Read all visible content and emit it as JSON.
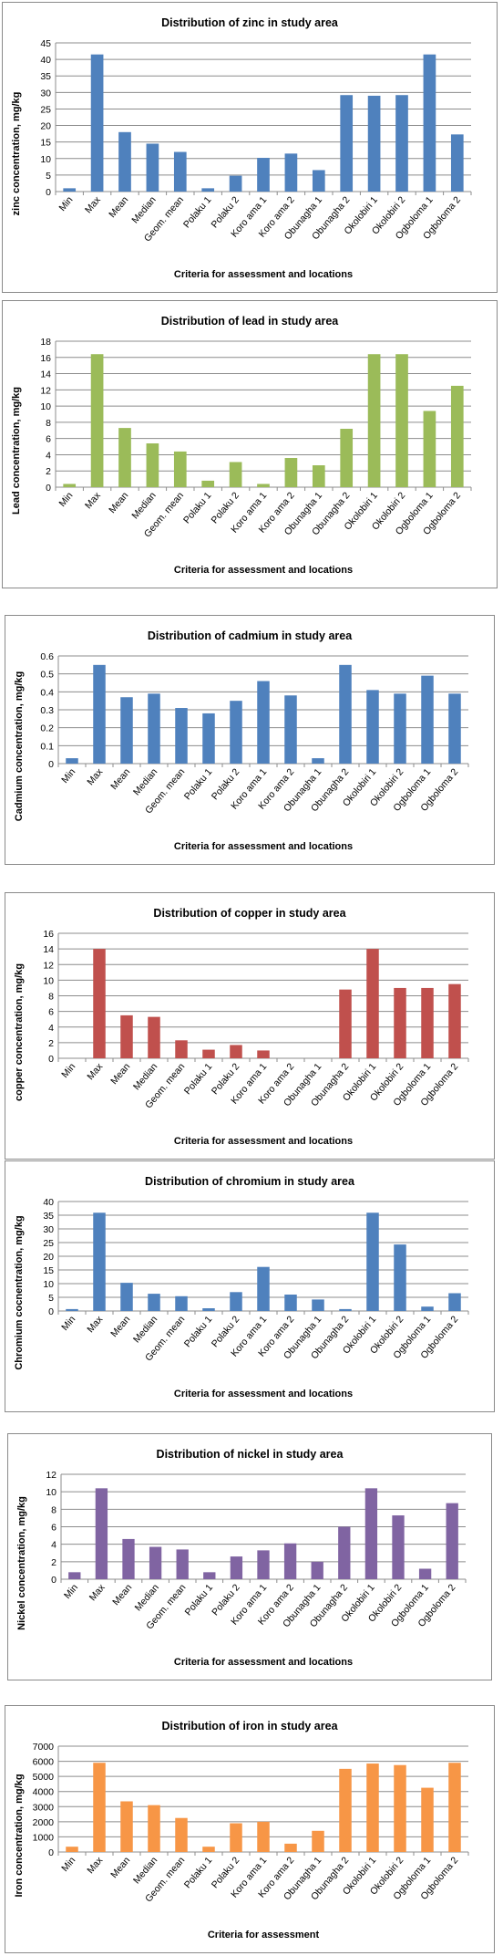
{
  "chart_data": [
    {
      "type": "bar",
      "title": "Distribution of zinc  in study area",
      "xlabel": "Criteria for assessment  and locations",
      "ylabel": "zinc concentration,  mg/kg",
      "categories": [
        "Min",
        "Max",
        "Mean",
        "Median",
        "Geom. mean",
        "Polaku 1",
        "Polaku 2",
        "Koro ama 1",
        "Koro ama 2",
        "Obunagha 1",
        "Obunagha 2",
        "Okolobiri 1",
        "Okolobiri 2",
        "Ogboloma 1",
        "Ogboloma 2"
      ],
      "values": [
        1,
        41.5,
        18,
        14.5,
        12,
        1,
        4.8,
        10.2,
        11.5,
        6.5,
        29.2,
        29,
        29.2,
        41.5,
        17.3
      ],
      "ylim": [
        0,
        45
      ],
      "yticks": [
        0,
        5,
        10,
        15,
        20,
        25,
        30,
        35,
        40,
        45
      ],
      "grid": true,
      "color": "#4f81bd"
    },
    {
      "type": "bar",
      "title": "Distribution of lead  in study area",
      "xlabel": "Criteria for assessment  and locations",
      "ylabel": "Lead concentration,  mg/kg",
      "categories": [
        "Min",
        "Max",
        "Mean",
        "Median",
        "Geom. mean",
        "Polaku 1",
        "Polaku 2",
        "Koro ama 1",
        "Koro ama 2",
        "Obunagha 1",
        "Obunagha 2",
        "Okolobiri 1",
        "Okolobiri 2",
        "Ogboloma 1",
        "Ogboloma 2"
      ],
      "values": [
        0.4,
        16.4,
        7.3,
        5.4,
        4.4,
        0.8,
        3.1,
        0.4,
        3.6,
        2.7,
        7.2,
        16.4,
        16.4,
        9.4,
        12.5
      ],
      "ylim": [
        0,
        18
      ],
      "yticks": [
        0,
        2,
        4,
        6,
        8,
        10,
        12,
        14,
        16,
        18
      ],
      "grid": true,
      "color": "#9bbb59"
    },
    {
      "type": "bar",
      "title": "Distribution of cadmium  in study area",
      "xlabel": "Criteria for assessment  and locations",
      "ylabel": "Cadmium concentration,  mg/kg",
      "categories": [
        "Min",
        "Max",
        "Mean",
        "Median",
        "Geom. mean",
        "Polaku 1",
        "Polaku 2",
        "Koro ama 1",
        "Koro ama 2",
        "Obunagha 1",
        "Obunagha 2",
        "Okolobiri 1",
        "Okolobiri 2",
        "Ogboloma 1",
        "Ogboloma 2"
      ],
      "values": [
        0.03,
        0.55,
        0.37,
        0.39,
        0.31,
        0.28,
        0.35,
        0.46,
        0.38,
        0.03,
        0.55,
        0.41,
        0.39,
        0.49,
        0.39
      ],
      "ylim": [
        0,
        0.6
      ],
      "yticks": [
        0,
        0.1,
        0.2,
        0.3,
        0.4,
        0.5,
        0.6
      ],
      "grid": true,
      "color": "#4f81bd"
    },
    {
      "type": "bar",
      "title": "Distribution of copper  in study area",
      "xlabel": "Criteria for assessment  and locations",
      "ylabel": "copper concentration, mg/kg",
      "categories": [
        "Min",
        "Max",
        "Mean",
        "Median",
        "Geom. mean",
        "Polaku 1",
        "Polaku 2",
        "Koro ama 1",
        "Koro ama 2",
        "Obunagha 1",
        "Obunagha 2",
        "Okolobiri 1",
        "Okolobiri 2",
        "Ogboloma 1",
        "Ogboloma 2"
      ],
      "values": [
        0,
        14,
        5.5,
        5.3,
        2.3,
        1.1,
        1.7,
        1,
        0,
        0,
        8.8,
        14,
        9,
        9,
        9.5
      ],
      "ylim": [
        0,
        16
      ],
      "yticks": [
        0,
        2,
        4,
        6,
        8,
        10,
        12,
        14,
        16
      ],
      "grid": true,
      "color": "#c0504d"
    },
    {
      "type": "bar",
      "title": "Distribution of chromium  in study area",
      "xlabel": "Criteria for assessment  and locations",
      "ylabel": "Chromium cocnentration,  mg/kg",
      "categories": [
        "Min",
        "Max",
        "Mean",
        "Median",
        "Geom. mean",
        "Polaku 1",
        "Polaku 2",
        "Koro ama 1",
        "Koro ama 2",
        "Obunagha 1",
        "Obunagha 2",
        "Okolobiri 1",
        "Okolobiri 2",
        "Ogboloma 1",
        "Ogboloma 2"
      ],
      "values": [
        0.7,
        35.9,
        10.3,
        6.3,
        5.4,
        1,
        6.9,
        16.1,
        6,
        4.2,
        0.7,
        35.9,
        24.3,
        1.6,
        6.5
      ],
      "ylim": [
        0,
        40
      ],
      "yticks": [
        0,
        5,
        10,
        15,
        20,
        25,
        30,
        35,
        40
      ],
      "grid": true,
      "color": "#4f81bd"
    },
    {
      "type": "bar",
      "title": "Distribution of nickel in study area",
      "xlabel": "Criteria for assessment  and locations",
      "ylabel": "Nickel concentration,  mg/kg",
      "categories": [
        "Min",
        "Max",
        "Mean",
        "Median",
        "Geom. mean",
        "Polaku 1",
        "Polaku 2",
        "Koro ama 1",
        "Koro ama 2",
        "Obunagha 1",
        "Obunagha 2",
        "Okolobiri 1",
        "Okolobiri 2",
        "Ogboloma 1",
        "Ogboloma 2"
      ],
      "values": [
        0.8,
        10.4,
        4.6,
        3.7,
        3.4,
        0.8,
        2.6,
        3.3,
        4.1,
        2,
        6,
        10.4,
        7.3,
        1.2,
        8.7
      ],
      "ylim": [
        0,
        12
      ],
      "yticks": [
        0,
        2,
        4,
        6,
        8,
        10,
        12
      ],
      "grid": true,
      "color": "#8064a2"
    },
    {
      "type": "bar",
      "title": "Distribution of iron  in study area",
      "xlabel": "Criteria for assessment",
      "ylabel": "Iron concentration, mg/kg",
      "categories": [
        "Min",
        "Max",
        "Mean",
        "Median",
        "Geom. mean",
        "Polaku 1",
        "Polaku 2",
        "Koro ama 1",
        "Koro ama 2",
        "Obunagha 1",
        "Obunagha 2",
        "Okolobiri 1",
        "Okolobiri 2",
        "Ogboloma 1",
        "Ogboloma 2"
      ],
      "values": [
        350,
        5900,
        3350,
        3100,
        2250,
        350,
        1900,
        2000,
        550,
        1400,
        5500,
        5850,
        5750,
        4250,
        5900
      ],
      "ylim": [
        0,
        7000
      ],
      "yticks": [
        0,
        1000,
        2000,
        3000,
        4000,
        5000,
        6000,
        7000
      ],
      "grid": true,
      "color": "#f79646"
    }
  ]
}
